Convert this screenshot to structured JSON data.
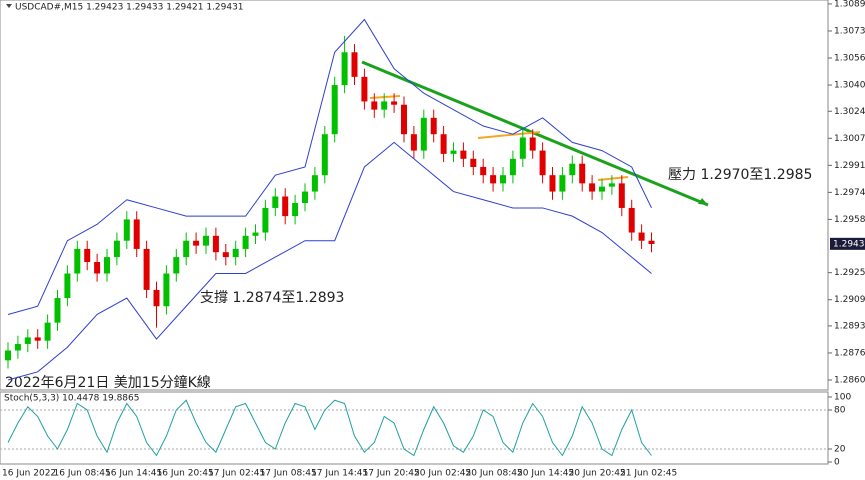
{
  "chart_data": [
    {
      "type": "candlestick",
      "title": "USDCAD#,M15 1.29423 1.29433 1.29421 1.29431",
      "annotations": [
        "壓力 1.2970至1.2985",
        "支撐 1.2874至1.2893",
        "2022年6月21日 美加15分鐘K線"
      ],
      "x_labels": [
        "16 Jun 2022",
        "16 Jun 08:45",
        "16 Jun 14:45",
        "16 Jun 20:45",
        "17 Jun 02:45",
        "17 Jun 08:45",
        "17 Jun 14:45",
        "17 Jun 20:45",
        "20 Jun 02:45",
        "20 Jun 08:45",
        "20 Jun 14:45",
        "20 Jun 20:45",
        "21 Jun 02:45"
      ],
      "open": [
        1.2872,
        1.2878,
        1.2882,
        1.2886,
        1.2884,
        1.2895,
        1.291,
        1.2925,
        1.294,
        1.2932,
        1.2925,
        1.2935,
        1.2945,
        1.2958,
        1.294,
        1.2915,
        1.2905,
        1.2925,
        1.2935,
        1.2945,
        1.2942,
        1.2948,
        1.2938,
        1.2935,
        1.294,
        1.2948,
        1.295,
        1.2965,
        1.2972,
        1.296,
        1.2968,
        1.2975,
        1.2985,
        1.301,
        1.304,
        1.306,
        1.3045,
        1.303,
        1.3025,
        1.303,
        1.3028,
        1.301,
        1.3,
        1.302,
        1.301,
        1.2998,
        1.3,
        1.2995,
        1.299,
        1.2985,
        1.298,
        1.2985,
        1.2995,
        1.3008,
        1.3,
        1.2985,
        1.2975,
        1.2985,
        1.2992,
        1.298,
        1.2975,
        1.2978,
        1.298,
        1.2965,
        1.295,
        1.2945
      ],
      "high": [
        1.2883,
        1.2887,
        1.2891,
        1.2891,
        1.29,
        1.2915,
        1.293,
        1.2945,
        1.2945,
        1.2937,
        1.294,
        1.295,
        1.2963,
        1.2963,
        1.2945,
        1.292,
        1.293,
        1.294,
        1.295,
        1.295,
        1.2953,
        1.2953,
        1.2943,
        1.2945,
        1.2953,
        1.2955,
        1.297,
        1.2977,
        1.2977,
        1.2973,
        1.298,
        1.299,
        1.3015,
        1.3045,
        1.307,
        1.3065,
        1.305,
        1.3035,
        1.3035,
        1.3035,
        1.3033,
        1.3015,
        1.3025,
        1.3025,
        1.3015,
        1.3005,
        1.3005,
        1.3,
        1.2995,
        1.299,
        1.299,
        1.3,
        1.3013,
        1.3013,
        1.3005,
        1.299,
        1.299,
        1.2997,
        1.2997,
        1.2985,
        1.2983,
        1.2985,
        1.2985,
        1.297,
        1.2955,
        1.295
      ],
      "low": [
        1.2867,
        1.2873,
        1.2877,
        1.2879,
        1.2879,
        1.289,
        1.2905,
        1.292,
        1.2927,
        1.292,
        1.292,
        1.293,
        1.294,
        1.2935,
        1.291,
        1.2892,
        1.29,
        1.292,
        1.293,
        1.2937,
        1.2937,
        1.2933,
        1.293,
        1.293,
        1.2935,
        1.2943,
        1.2945,
        1.296,
        1.2955,
        1.2955,
        1.2963,
        1.297,
        1.298,
        1.3005,
        1.3035,
        1.304,
        1.3025,
        1.302,
        1.302,
        1.3023,
        1.3005,
        1.2995,
        1.2995,
        1.3005,
        1.2993,
        1.2993,
        1.299,
        1.2985,
        1.298,
        1.2975,
        1.2975,
        1.298,
        1.299,
        1.2995,
        1.298,
        1.297,
        1.297,
        1.298,
        1.2975,
        1.297,
        1.297,
        1.2973,
        1.296,
        1.2945,
        1.294,
        1.2938
      ],
      "close": [
        1.2878,
        1.2882,
        1.2886,
        1.2884,
        1.2895,
        1.291,
        1.2925,
        1.294,
        1.2932,
        1.2925,
        1.2935,
        1.2945,
        1.2958,
        1.294,
        1.2915,
        1.2905,
        1.2925,
        1.2935,
        1.2945,
        1.2942,
        1.2948,
        1.2938,
        1.2935,
        1.294,
        1.2948,
        1.295,
        1.2965,
        1.2972,
        1.296,
        1.2968,
        1.2975,
        1.2985,
        1.301,
        1.304,
        1.306,
        1.3045,
        1.303,
        1.3025,
        1.303,
        1.3028,
        1.301,
        1.3,
        1.302,
        1.301,
        1.2998,
        1.3,
        1.2995,
        1.299,
        1.2985,
        1.298,
        1.2985,
        1.2995,
        1.3008,
        1.3,
        1.2985,
        1.2975,
        1.2985,
        1.2992,
        1.298,
        1.2975,
        1.2978,
        1.298,
        1.2965,
        1.295,
        1.2945,
        1.2943
      ],
      "up_color": "#00c000",
      "down_color": "#e00000",
      "bands": {
        "color": "#2f3fd0",
        "x": [
          0,
          3,
          6,
          9,
          12,
          15,
          18,
          21,
          24,
          27,
          30,
          33,
          36,
          39,
          42,
          45,
          48,
          51,
          54,
          57,
          60,
          63,
          65
        ],
        "upper": [
          1.29,
          1.2905,
          1.2945,
          1.2955,
          1.297,
          1.2965,
          1.296,
          1.296,
          1.296,
          1.2985,
          1.299,
          1.306,
          1.308,
          1.305,
          1.3035,
          1.3025,
          1.3015,
          1.301,
          1.302,
          1.3005,
          1.3,
          1.299,
          1.2965
        ],
        "lower": [
          1.286,
          1.2865,
          1.288,
          1.29,
          1.291,
          1.2885,
          1.2905,
          1.2925,
          1.2925,
          1.2935,
          1.2945,
          1.2945,
          1.299,
          1.3005,
          1.299,
          1.2975,
          1.297,
          1.2965,
          1.2965,
          1.296,
          1.295,
          1.2935,
          1.2925
        ]
      },
      "current_price": 1.29431,
      "ylim": [
        1.28539,
        1.30919
      ],
      "yticks": [
        {
          "value": 1.30895,
          "label": "1.30895"
        },
        {
          "value": 1.3073,
          "label": "1.30730"
        },
        {
          "value": 1.30565,
          "label": "1.30565"
        },
        {
          "value": 1.304,
          "label": "1.30400"
        },
        {
          "value": 1.3024,
          "label": "1.30240"
        },
        {
          "value": 1.30075,
          "label": "1.30075"
        },
        {
          "value": 1.2991,
          "label": "1.29910"
        },
        {
          "value": 1.29745,
          "label": "1.29745"
        },
        {
          "value": 1.2958,
          "label": "1.29580"
        },
        {
          "value": 1.29255,
          "label": "1.29255"
        },
        {
          "value": 1.2909,
          "label": "1.29090"
        },
        {
          "value": 1.2893,
          "label": "1.28930"
        },
        {
          "value": 1.28765,
          "label": "1.28765"
        },
        {
          "value": 1.286,
          "label": "1.28600"
        }
      ]
    },
    {
      "type": "line",
      "title": "Stoch(5,3,3) 10.4478 19.8865",
      "color": "#20a0a0",
      "values": [
        30,
        60,
        85,
        70,
        40,
        20,
        50,
        90,
        80,
        40,
        15,
        60,
        90,
        70,
        30,
        10,
        40,
        80,
        95,
        60,
        30,
        15,
        50,
        85,
        90,
        60,
        30,
        20,
        60,
        90,
        85,
        50,
        80,
        95,
        90,
        40,
        15,
        30,
        70,
        60,
        20,
        10,
        50,
        85,
        60,
        25,
        15,
        40,
        80,
        70,
        30,
        15,
        60,
        90,
        70,
        30,
        10,
        40,
        85,
        60,
        20,
        10,
        50,
        80,
        30,
        10
      ],
      "ylim": [
        0,
        100
      ],
      "yticks": [
        0,
        20,
        80,
        100
      ]
    }
  ]
}
